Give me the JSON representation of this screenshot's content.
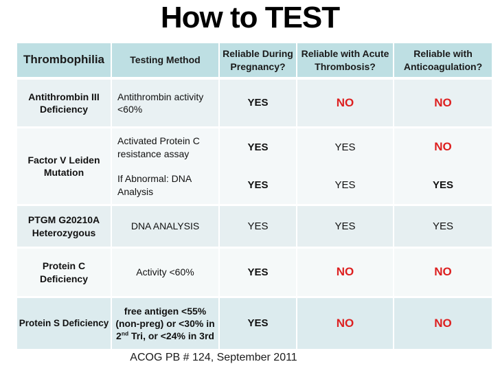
{
  "title": "How to TEST",
  "footer": "ACOG PB # 124, September 2011",
  "colors": {
    "header_bg": "#bedfe3",
    "row_antithrombin_bg": "#e9f1f3",
    "row_factor_v_bg": "#f4f8f9",
    "row_ptgm_bg": "#e6eff1",
    "row_protein_c_bg": "#f5f9f9",
    "row_protein_s_bg": "#dcebee",
    "no_red": "#dd2020",
    "text": "#111111"
  },
  "table": {
    "headers": [
      "Thrombophilia",
      "Testing Method",
      "Reliable During Pregnancy?",
      "Reliable with Acute Thrombosis?",
      "Reliable with Anticoagulation?"
    ],
    "rows": [
      {
        "thrombophilia": "Antithrombin III Deficiency",
        "testing_method": "Antithrombin activity <60%",
        "reliable_pregnancy": "YES",
        "reliable_thrombosis": "NO",
        "reliable_anticoagulation": "NO"
      },
      {
        "thrombophilia": "Factor V Leiden Mutation",
        "testing_method_1": "Activated Protein C resistance assay",
        "testing_method_2": "If Abnormal:  DNA Analysis",
        "sub1": {
          "reliable_pregnancy": "YES",
          "reliable_thrombosis": "YES",
          "reliable_anticoagulation": "NO"
        },
        "sub2": {
          "reliable_pregnancy": "YES",
          "reliable_thrombosis": "YES",
          "reliable_anticoagulation": "YES"
        }
      },
      {
        "thrombophilia": "PTGM G20210A Heterozygous",
        "testing_method": "DNA ANALYSIS",
        "reliable_pregnancy": "YES",
        "reliable_thrombosis": "YES",
        "reliable_anticoagulation": "YES"
      },
      {
        "thrombophilia": "Protein C Deficiency",
        "testing_method": "Activity <60%",
        "reliable_pregnancy": "YES",
        "reliable_thrombosis": "NO",
        "reliable_anticoagulation": "NO"
      },
      {
        "thrombophilia": "Protein S Deficiency",
        "testing_method_line1": "free antigen <55%",
        "testing_method_line2": "(non-preg) or <30% in",
        "testing_method_line3_pre": "2",
        "testing_method_line3_sup": "nd",
        "testing_method_line3_post": " Tri, or <24% in 3rd",
        "reliable_pregnancy": "YES",
        "reliable_thrombosis": "NO",
        "reliable_anticoagulation": "NO"
      }
    ]
  }
}
